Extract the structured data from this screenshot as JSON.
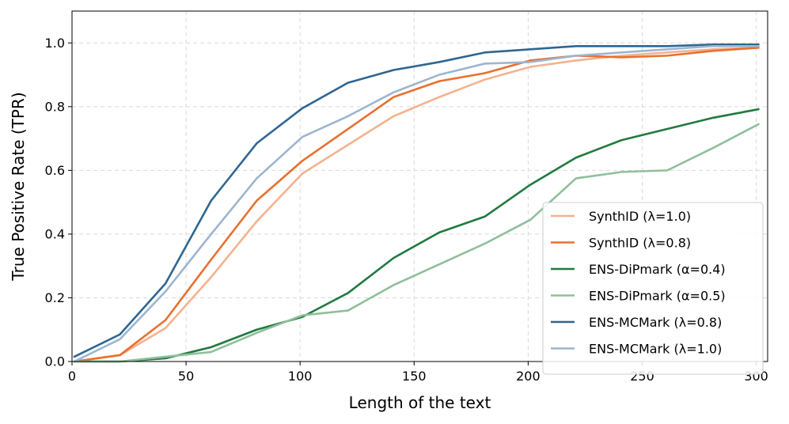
{
  "chart_data": {
    "type": "line",
    "title": "",
    "xlabel": "Length of the text",
    "ylabel": "True Positive Rate (TPR)",
    "xlim": [
      0,
      305
    ],
    "ylim": [
      0,
      1.1
    ],
    "xticks": [
      0,
      50,
      100,
      150,
      200,
      250,
      300
    ],
    "xtick_labels": [
      "0",
      "50",
      "100",
      "150",
      "200",
      "250",
      "300"
    ],
    "yticks": [
      0.0,
      0.2,
      0.4,
      0.6,
      0.8,
      1.0
    ],
    "ytick_labels": [
      "0.0",
      "0.2",
      "0.4",
      "0.6",
      "0.8",
      "1.0"
    ],
    "grid": true,
    "legend_position": "lower-right",
    "x": [
      1,
      21,
      41,
      61,
      81,
      101,
      121,
      141,
      161,
      181,
      201,
      221,
      241,
      261,
      281,
      301
    ],
    "series": [
      {
        "name": "SynthID (λ=1.0)",
        "color": "#f4b28e",
        "values": [
          0.0,
          0.02,
          0.105,
          0.265,
          0.44,
          0.59,
          0.68,
          0.77,
          0.83,
          0.885,
          0.925,
          0.945,
          0.96,
          0.97,
          0.98,
          0.985
        ]
      },
      {
        "name": "SynthID (λ=0.8)",
        "color": "#e8702f",
        "values": [
          0.0,
          0.02,
          0.13,
          0.32,
          0.505,
          0.63,
          0.73,
          0.83,
          0.88,
          0.905,
          0.945,
          0.96,
          0.955,
          0.96,
          0.975,
          0.985
        ]
      },
      {
        "name": "ENS-DiPmark (α=0.4)",
        "color": "#217a3f",
        "values": [
          0.0,
          0.0,
          0.01,
          0.045,
          0.1,
          0.14,
          0.215,
          0.325,
          0.405,
          0.455,
          0.555,
          0.64,
          0.695,
          0.73,
          0.765,
          0.792
        ]
      },
      {
        "name": "ENS-DiPmark (α=0.5)",
        "color": "#8fbf9b",
        "values": [
          0.0,
          0.0,
          0.015,
          0.03,
          0.09,
          0.145,
          0.16,
          0.24,
          0.305,
          0.37,
          0.445,
          0.575,
          0.595,
          0.6,
          0.67,
          0.745
        ]
      },
      {
        "name": "ENS-MCMark (λ=0.8)",
        "color": "#2f6690",
        "values": [
          0.015,
          0.085,
          0.245,
          0.505,
          0.685,
          0.795,
          0.875,
          0.915,
          0.94,
          0.97,
          0.98,
          0.99,
          0.99,
          0.99,
          0.995,
          0.995
        ]
      },
      {
        "name": "ENS-MCMark (λ=1.0)",
        "color": "#9db5cf",
        "values": [
          0.0,
          0.07,
          0.22,
          0.4,
          0.575,
          0.705,
          0.77,
          0.845,
          0.9,
          0.935,
          0.94,
          0.96,
          0.97,
          0.98,
          0.99,
          0.99
        ]
      }
    ]
  }
}
